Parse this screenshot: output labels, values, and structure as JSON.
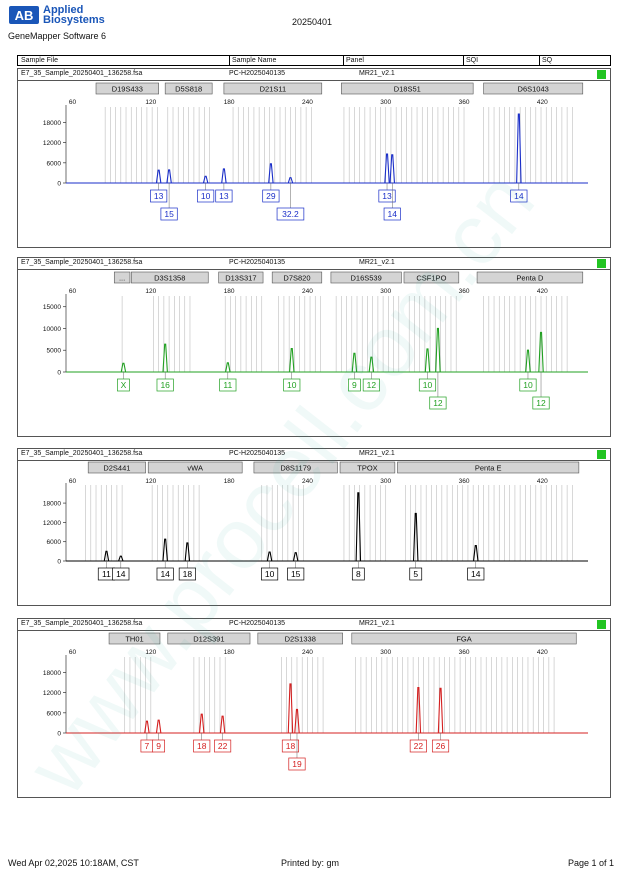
{
  "header": {
    "brand_line1": "Applied",
    "brand_line2": "Biosystems",
    "app_name": "GeneMapper Software 6",
    "report_date": "20250401"
  },
  "columns": {
    "sample_file": "Sample File",
    "sample_name": "Sample Name",
    "panel": "Panel",
    "sqi": "SQI",
    "sq": "SQ"
  },
  "footer": {
    "timestamp": "Wed Apr 02,2025 10:18AM, CST",
    "printed_by": "Printed by: gm",
    "page": "Page 1 of 1"
  },
  "colors": {
    "blue": "#1a2ec8",
    "green": "#22a022",
    "black": "#000000",
    "red": "#d42020",
    "status": "#22c422"
  },
  "chart_data": [
    {
      "type": "line",
      "dye": "blue",
      "sample_file": "E7_35_Sample_20250401_136258.fsa",
      "sample_name": "PC-H2025040135",
      "panel": "MR21_v2.1",
      "x_ticks": [
        60,
        120,
        180,
        240,
        300,
        360,
        420
      ],
      "y_ticks": [
        0,
        6000,
        12000,
        18000
      ],
      "xlim": [
        55,
        455
      ],
      "ylim": [
        0,
        22000
      ],
      "markers": [
        {
          "name": "D19S433",
          "start": 78,
          "end": 126
        },
        {
          "name": "D5S818",
          "start": 131,
          "end": 167
        },
        {
          "name": "D21S11",
          "start": 176,
          "end": 251
        },
        {
          "name": "D18S51",
          "start": 266,
          "end": 367
        },
        {
          "name": "D6S1043",
          "start": 375,
          "end": 451
        }
      ],
      "bin_ranges": [
        [
          85,
          125
        ],
        [
          133,
          165
        ],
        [
          183,
          245
        ],
        [
          268,
          360
        ],
        [
          375,
          445
        ]
      ],
      "peaks": [
        {
          "x": 126,
          "height": 3800,
          "allele": "13",
          "row": 0
        },
        {
          "x": 134,
          "height": 3900,
          "allele": "15",
          "row": 1
        },
        {
          "x": 162,
          "height": 2000,
          "allele": "10",
          "row": 0
        },
        {
          "x": 176,
          "height": 4200,
          "allele": "13",
          "row": 0
        },
        {
          "x": 212,
          "height": 5700,
          "allele": "29",
          "row": 0
        },
        {
          "x": 227,
          "height": 1600,
          "allele": "32.2",
          "row": 1
        },
        {
          "x": 301,
          "height": 8600,
          "allele": "13",
          "row": 0
        },
        {
          "x": 305,
          "height": 8400,
          "allele": "14",
          "row": 1
        },
        {
          "x": 402,
          "height": 20500,
          "allele": "14",
          "row": 0
        }
      ]
    },
    {
      "type": "line",
      "dye": "green",
      "sample_file": "E7_35_Sample_20250401_136258.fsa",
      "sample_name": "PC-H2025040135",
      "panel": "MR21_v2.1",
      "x_ticks": [
        60,
        120,
        180,
        240,
        300,
        360,
        420
      ],
      "y_ticks": [
        0,
        5000,
        10000,
        15000
      ],
      "xlim": [
        55,
        455
      ],
      "ylim": [
        0,
        17000
      ],
      "markers": [
        {
          "name": "...",
          "start": 92,
          "end": 104
        },
        {
          "name": "D3S1358",
          "start": 105,
          "end": 164
        },
        {
          "name": "D13S317",
          "start": 172,
          "end": 206
        },
        {
          "name": "D7S820",
          "start": 213,
          "end": 251
        },
        {
          "name": "D16S539",
          "start": 258,
          "end": 312
        },
        {
          "name": "CSF1PO",
          "start": 314,
          "end": 356
        },
        {
          "name": "Penta D",
          "start": 370,
          "end": 451
        }
      ],
      "bin_ranges": [
        [
          98,
          100
        ],
        [
          122,
          150
        ],
        [
          177,
          205
        ],
        [
          218,
          250
        ],
        [
          262,
          310
        ],
        [
          318,
          355
        ],
        [
          375,
          440
        ]
      ],
      "peaks": [
        {
          "x": 99,
          "height": 2000,
          "allele": "X",
          "row": 0
        },
        {
          "x": 131,
          "height": 6400,
          "allele": "16",
          "row": 0
        },
        {
          "x": 179,
          "height": 2100,
          "allele": "11",
          "row": 0
        },
        {
          "x": 228,
          "height": 5400,
          "allele": "10",
          "row": 0
        },
        {
          "x": 276,
          "height": 4300,
          "allele": "9",
          "row": 0
        },
        {
          "x": 289,
          "height": 3400,
          "allele": "12",
          "row": 0
        },
        {
          "x": 332,
          "height": 5300,
          "allele": "10",
          "row": 0
        },
        {
          "x": 340,
          "height": 10000,
          "allele": "12",
          "row": 1
        },
        {
          "x": 409,
          "height": 5000,
          "allele": "10",
          "row": 0
        },
        {
          "x": 419,
          "height": 9100,
          "allele": "12",
          "row": 1
        }
      ]
    },
    {
      "type": "line",
      "dye": "black",
      "sample_file": "E7_35_Sample_20250401_136258.fsa",
      "sample_name": "PC-H2025040135",
      "panel": "MR21_v2.1",
      "x_ticks": [
        60,
        120,
        180,
        240,
        300,
        360,
        420
      ],
      "y_ticks": [
        0,
        6000,
        12000,
        18000
      ],
      "xlim": [
        55,
        455
      ],
      "ylim": [
        0,
        23000
      ],
      "markers": [
        {
          "name": "D2S441",
          "start": 72,
          "end": 116
        },
        {
          "name": "vWA",
          "start": 118,
          "end": 190
        },
        {
          "name": "D8S1179",
          "start": 199,
          "end": 263
        },
        {
          "name": "TPOX",
          "start": 265,
          "end": 307
        },
        {
          "name": "Penta E",
          "start": 309,
          "end": 448
        }
      ],
      "bin_ranges": [
        [
          70,
          100
        ],
        [
          121,
          158
        ],
        [
          205,
          240
        ],
        [
          268,
          302
        ],
        [
          315,
          445
        ]
      ],
      "peaks": [
        {
          "x": 86,
          "height": 3000,
          "allele": "11",
          "row": 0
        },
        {
          "x": 97,
          "height": 1500,
          "allele": "14",
          "row": 0
        },
        {
          "x": 131,
          "height": 6800,
          "allele": "14",
          "row": 0
        },
        {
          "x": 148,
          "height": 5600,
          "allele": "18",
          "row": 0
        },
        {
          "x": 211,
          "height": 2800,
          "allele": "10",
          "row": 0
        },
        {
          "x": 231,
          "height": 2600,
          "allele": "15",
          "row": 0
        },
        {
          "x": 279,
          "height": 21200,
          "allele": "8",
          "row": 0
        },
        {
          "x": 323,
          "height": 14800,
          "allele": "5",
          "row": 0
        },
        {
          "x": 369,
          "height": 4800,
          "allele": "14",
          "row": 0
        }
      ]
    },
    {
      "type": "line",
      "dye": "red",
      "sample_file": "E7_35_Sample_20250401_136258.fsa",
      "sample_name": "PC-H2025040135",
      "panel": "MR21_v2.1",
      "x_ticks": [
        60,
        120,
        180,
        240,
        300,
        360,
        420
      ],
      "y_ticks": [
        0,
        6000,
        12000,
        18000
      ],
      "xlim": [
        55,
        455
      ],
      "ylim": [
        0,
        22000
      ],
      "markers": [
        {
          "name": "TH01",
          "start": 88,
          "end": 127
        },
        {
          "name": "D12S391",
          "start": 133,
          "end": 196
        },
        {
          "name": "D2S1338",
          "start": 202,
          "end": 267
        },
        {
          "name": "FGA",
          "start": 274,
          "end": 446
        }
      ],
      "bin_ranges": [
        [
          100,
          120
        ],
        [
          153,
          178
        ],
        [
          220,
          255
        ],
        [
          277,
          430
        ]
      ],
      "peaks": [
        {
          "x": 117,
          "height": 3500,
          "allele": "7",
          "row": 0
        },
        {
          "x": 126,
          "height": 3800,
          "allele": "9",
          "row": 0
        },
        {
          "x": 159,
          "height": 5600,
          "allele": "18",
          "row": 0
        },
        {
          "x": 175,
          "height": 5000,
          "allele": "22",
          "row": 0
        },
        {
          "x": 227,
          "height": 14600,
          "allele": "18",
          "row": 0
        },
        {
          "x": 232,
          "height": 7000,
          "allele": "19",
          "row": 1
        },
        {
          "x": 325,
          "height": 13500,
          "allele": "22",
          "row": 0
        },
        {
          "x": 342,
          "height": 13300,
          "allele": "26",
          "row": 0
        }
      ]
    }
  ]
}
